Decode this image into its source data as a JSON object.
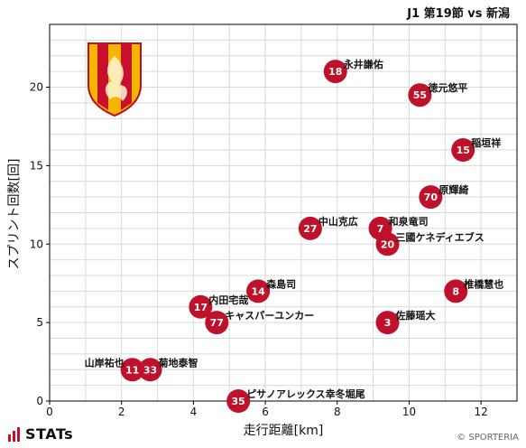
{
  "header": {
    "match_title": "J1 第19節 vs 新潟"
  },
  "footer": {
    "brand": "STATs",
    "copyright": "© SPORTERIA"
  },
  "colors": {
    "marker": "#c0112b",
    "marker_text": "#ffffff",
    "grid": "#d9d9d9",
    "axis": "#000000"
  },
  "chart_data": {
    "type": "scatter",
    "xlabel": "走行距離[km]",
    "ylabel": "スプリント回数[回]",
    "xlim": [
      0,
      13
    ],
    "ylim": [
      0,
      24
    ],
    "xticks": [
      0,
      2,
      4,
      6,
      8,
      10,
      12
    ],
    "yticks": [
      0,
      5,
      10,
      15,
      20
    ],
    "grid": true,
    "points": [
      {
        "number": "18",
        "name": "永井謙佑",
        "x": 7.95,
        "y": 21,
        "label_pos": "right"
      },
      {
        "number": "55",
        "name": "徳元悠平",
        "x": 10.3,
        "y": 19.5,
        "label_pos": "right"
      },
      {
        "number": "15",
        "name": "稲垣祥",
        "x": 11.5,
        "y": 16,
        "label_pos": "right"
      },
      {
        "number": "70",
        "name": "原輝綺",
        "x": 10.6,
        "y": 13,
        "label_pos": "right"
      },
      {
        "number": "27",
        "name": "中山克広",
        "x": 7.25,
        "y": 11,
        "label_pos": "right"
      },
      {
        "number": "7",
        "name": "和泉竜司",
        "x": 9.2,
        "y": 11,
        "label_pos": "right"
      },
      {
        "number": "20",
        "name": "三國ケネディエブス",
        "x": 9.4,
        "y": 10,
        "label_pos": "right"
      },
      {
        "number": "14",
        "name": "森島司",
        "x": 5.8,
        "y": 7,
        "label_pos": "right"
      },
      {
        "number": "8",
        "name": "椎橋慧也",
        "x": 11.3,
        "y": 7,
        "label_pos": "right"
      },
      {
        "number": "17",
        "name": "内田宅哉",
        "x": 4.2,
        "y": 6,
        "label_pos": "right"
      },
      {
        "number": "77",
        "name": "キャスパーユンカー",
        "x": 4.65,
        "y": 5,
        "label_pos": "right"
      },
      {
        "number": "3",
        "name": "佐藤瑶大",
        "x": 9.4,
        "y": 5,
        "label_pos": "right"
      },
      {
        "number": "11",
        "name": "山岸祐也",
        "x": 2.3,
        "y": 2,
        "label_pos": "left"
      },
      {
        "number": "33",
        "name": "菊地泰智",
        "x": 2.8,
        "y": 2,
        "label_pos": "right"
      },
      {
        "number": "35",
        "name": "ピサノアレックス幸冬堀尾",
        "x": 5.25,
        "y": 0,
        "label_pos": "right"
      }
    ]
  }
}
